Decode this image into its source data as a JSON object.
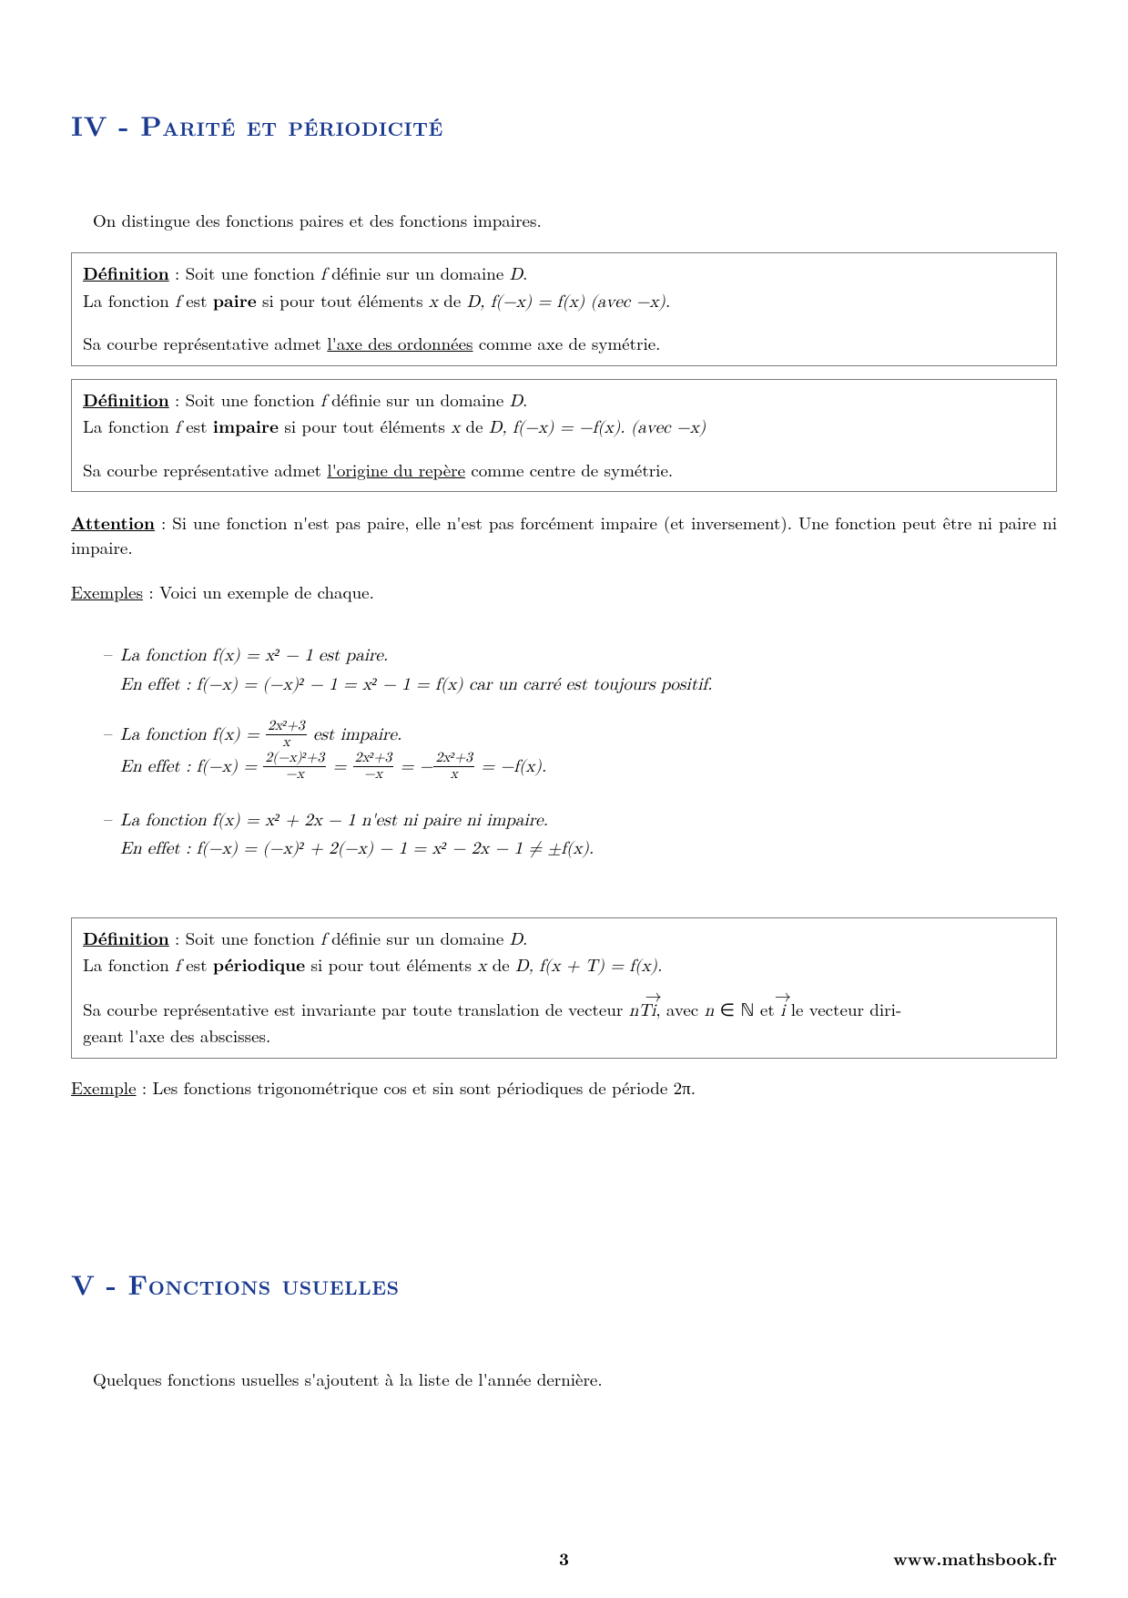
{
  "colors": {
    "heading": "#1a3a8f",
    "text": "#000000",
    "boxBorder": "#7a7a7a",
    "background": "#ffffff"
  },
  "typography": {
    "bodySize": 19,
    "headingSize": 30,
    "headingVariant": "small-caps",
    "family": "Latin Modern / Computer Modern serif"
  },
  "sectionIV": {
    "title": "IV - Parité et périodicité",
    "intro": "On distingue des fonctions paires et des fonctions impaires.",
    "def1": {
      "line1_pre": "Définition",
      "line1_rest": " : Soit une fonction ",
      "line1_f": "f",
      "line1_post": " définie sur un domaine ",
      "line1_D": "D",
      "line1_end": ".",
      "line2_pre": "La fonction ",
      "line2_f": "f",
      "line2_mid": " est ",
      "line2_bold": "paire",
      "line2_post": " si pour tout éléments ",
      "line2_x": "x",
      "line2_de": " de ",
      "line2_D": "D",
      "line2_eq": ", f(−x) = f(x) (avec −x).",
      "line3_pre": "Sa courbe représentative admet ",
      "line3_ul": "l'axe des ordonnées",
      "line3_post": " comme axe de symétrie."
    },
    "def2": {
      "line1_pre": "Définition",
      "line1_rest": " : Soit une fonction ",
      "line1_f": "f",
      "line1_post": " définie sur un domaine ",
      "line1_D": "D",
      "line1_end": ".",
      "line2_pre": "La fonction ",
      "line2_f": "f",
      "line2_mid": " est ",
      "line2_bold": "impaire",
      "line2_post": " si pour tout éléments ",
      "line2_x": "x",
      "line2_de": " de ",
      "line2_D": "D",
      "line2_eq": ", f(−x) = −f(x). (avec −x)",
      "line3_pre": "Sa courbe représentative admet ",
      "line3_ul": "l'origine du repère",
      "line3_post": " comme centre de symétrie."
    },
    "attention_label": "Attention",
    "attention_text": " : Si une fonction n'est pas paire, elle n'est pas forcément impaire (et inversement). Une fonction peut être ni paire ni impaire.",
    "examples_label": "Exemples",
    "examples_text": " : Voici un exemple de chaque.",
    "ex1_line1": "La fonction f(x) = x² − 1 est paire.",
    "ex1_line2": "En effet : f(−x) = (−x)² − 1 = x² − 1 = f(x) car un carré est toujours positif.",
    "ex2_line1_pre": "La fonction f(x) = ",
    "ex2_frac_num": "2x²+3",
    "ex2_frac_den": "x",
    "ex2_line1_post": " est impaire.",
    "ex2_line2_pre": "En effet : f(−x) = ",
    "ex2_f2_num": "2(−x)²+3",
    "ex2_f2_den": "−x",
    "ex2_eq1": " = ",
    "ex2_f3_num": "2x²+3",
    "ex2_f3_den": "−x",
    "ex2_eq2": " = −",
    "ex2_f4_num": "2x²+3",
    "ex2_f4_den": "x",
    "ex2_line2_post": " = −f(x).",
    "ex3_line1": "La fonction f(x) = x² + 2x − 1 n'est ni paire ni impaire.",
    "ex3_line2": "En effet : f(−x) = (−x)² + 2(−x) − 1 = x² − 2x − 1 ≠ ±f(x).",
    "def3": {
      "line1_pre": "Définition",
      "line1_rest": " : Soit une fonction ",
      "line1_f": "f",
      "line1_post": " définie sur un domaine ",
      "line1_D": "D",
      "line1_end": ".",
      "line2_pre": "La fonction ",
      "line2_f": "f",
      "line2_mid": " est ",
      "line2_bold": "périodique",
      "line2_post": " si pour tout éléments ",
      "line2_x": "x",
      "line2_de": " de ",
      "line2_D": "D",
      "line2_eq": ", f(x + T) = f(x).",
      "line3_a": "Sa courbe représentative est invariante par toute translation de vecteur ",
      "line3_nT": "nT",
      "line3_vec": "i",
      "line3_b": ", avec ",
      "line3_n": "n",
      "line3_c": " ∈ ",
      "line3_N": "ℕ",
      "line3_d": " et ",
      "line3_vec2": "i",
      "line3_e": " le vecteur diri-",
      "line4": "geant l'axe des abscisses."
    },
    "example_period_label": "Exemple",
    "example_period_text": " : Les fonctions trigonométrique cos et sin sont périodiques de période 2π."
  },
  "sectionV": {
    "title": "V - Fonctions usuelles",
    "intro": "Quelques fonctions usuelles s'ajoutent à la liste de l'année dernière."
  },
  "footer": {
    "page": "3",
    "site": "www.mathsbook.fr"
  }
}
